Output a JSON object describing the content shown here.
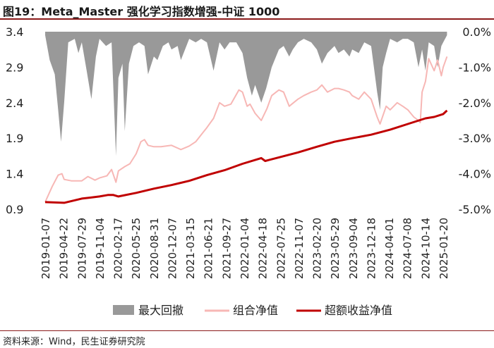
{
  "header": {
    "title": "图19：Meta_Master 强化学习指数增强-中证 1000"
  },
  "footer": {
    "source": "资料来源：Wind，民生证券研究院"
  },
  "chart_data": {
    "type": "line",
    "x_dates": [
      "2019-01-07",
      "2019-04-22",
      "2019-07-29",
      "2019-11-04",
      "2020-02-17",
      "2020-05-25",
      "2020-08-31",
      "2020-12-07",
      "2021-03-15",
      "2021-06-21",
      "2021-09-27",
      "2022-01-04",
      "2022-04-18",
      "2022-07-25",
      "2022-11-07",
      "2023-02-20",
      "2023-05-29",
      "2023-09-04",
      "2023-12-18",
      "2024-04-01",
      "2024-07-08",
      "2024-10-14",
      "2025-01-20"
    ],
    "y_left": {
      "ticks": [
        "0.9",
        "1.4",
        "1.9",
        "2.4",
        "2.9",
        "3.4"
      ],
      "lim": [
        0.9,
        3.4
      ]
    },
    "y_right": {
      "ticks": [
        "0.0%",
        "-1.0%",
        "-2.0%",
        "-3.0%",
        "-4.0%",
        "-5.0%"
      ],
      "lim": [
        -5.0,
        0.0
      ]
    },
    "colors": {
      "drawdown": "#999999",
      "nav": "#f7b7b5",
      "excess": "#c00000"
    },
    "series": [
      {
        "name": "最大回撤",
        "kind": "area",
        "axis": "right",
        "points": [
          [
            "2019-01-07",
            -0.1
          ],
          [
            "2019-02-01",
            -0.8
          ],
          [
            "2019-03-01",
            -1.2
          ],
          [
            "2019-03-20",
            -2.2
          ],
          [
            "2019-04-05",
            -3.1
          ],
          [
            "2019-04-22",
            -2.0
          ],
          [
            "2019-05-15",
            -0.3
          ],
          [
            "2019-06-20",
            -0.2
          ],
          [
            "2019-07-10",
            -0.6
          ],
          [
            "2019-07-29",
            -0.3
          ],
          [
            "2019-08-25",
            -1.1
          ],
          [
            "2019-09-20",
            -1.9
          ],
          [
            "2019-10-15",
            -0.7
          ],
          [
            "2019-11-04",
            -0.2
          ],
          [
            "2019-12-10",
            -0.4
          ],
          [
            "2020-01-10",
            -0.3
          ],
          [
            "2020-02-03",
            -3.5
          ],
          [
            "2020-02-17",
            -1.3
          ],
          [
            "2020-03-10",
            -0.9
          ],
          [
            "2020-03-23",
            -2.8
          ],
          [
            "2020-04-15",
            -0.9
          ],
          [
            "2020-05-10",
            -0.4
          ],
          [
            "2020-06-10",
            -0.3
          ],
          [
            "2020-07-10",
            -0.4
          ],
          [
            "2020-07-30",
            -1.2
          ],
          [
            "2020-08-31",
            -0.7
          ],
          [
            "2020-09-20",
            -0.8
          ],
          [
            "2020-10-20",
            -0.4
          ],
          [
            "2020-11-20",
            -0.3
          ],
          [
            "2020-12-07",
            -0.5
          ],
          [
            "2021-01-10",
            -0.4
          ],
          [
            "2021-01-28",
            -0.8
          ],
          [
            "2021-02-20",
            -0.5
          ],
          [
            "2021-03-15",
            -0.2
          ],
          [
            "2021-04-20",
            -0.3
          ],
          [
            "2021-05-20",
            -0.2
          ],
          [
            "2021-06-21",
            -0.3
          ],
          [
            "2021-07-28",
            -1.1
          ],
          [
            "2021-08-30",
            -0.3
          ],
          [
            "2021-09-27",
            -0.5
          ],
          [
            "2021-10-25",
            -0.3
          ],
          [
            "2021-12-01",
            -0.3
          ],
          [
            "2022-01-04",
            -0.6
          ],
          [
            "2022-01-30",
            -1.3
          ],
          [
            "2022-02-25",
            -1.8
          ],
          [
            "2022-03-15",
            -1.5
          ],
          [
            "2022-04-18",
            -2.0
          ],
          [
            "2022-05-15",
            -1.6
          ],
          [
            "2022-06-15",
            -1.0
          ],
          [
            "2022-07-25",
            -0.5
          ],
          [
            "2022-08-20",
            -0.4
          ],
          [
            "2022-09-20",
            -0.7
          ],
          [
            "2022-10-10",
            -0.5
          ],
          [
            "2022-11-07",
            -0.3
          ],
          [
            "2022-12-10",
            -0.2
          ],
          [
            "2023-01-20",
            -0.3
          ],
          [
            "2023-02-20",
            -0.5
          ],
          [
            "2023-03-20",
            -0.9
          ],
          [
            "2023-04-20",
            -0.6
          ],
          [
            "2023-05-29",
            -0.4
          ],
          [
            "2023-06-20",
            -0.6
          ],
          [
            "2023-07-20",
            -0.5
          ],
          [
            "2023-08-20",
            -0.7
          ],
          [
            "2023-09-04",
            -0.5
          ],
          [
            "2023-10-10",
            -0.6
          ],
          [
            "2023-11-10",
            -0.3
          ],
          [
            "2023-12-18",
            -0.4
          ],
          [
            "2024-01-20",
            -1.7
          ],
          [
            "2024-02-05",
            -2.2
          ],
          [
            "2024-02-20",
            -1.0
          ],
          [
            "2024-03-10",
            -0.6
          ],
          [
            "2024-04-01",
            -0.2
          ],
          [
            "2024-05-10",
            -0.3
          ],
          [
            "2024-06-10",
            -0.2
          ],
          [
            "2024-07-08",
            -0.2
          ],
          [
            "2024-08-10",
            -0.3
          ],
          [
            "2024-09-05",
            -1.0
          ],
          [
            "2024-09-25",
            -0.5
          ],
          [
            "2024-10-14",
            -1.1
          ],
          [
            "2024-11-01",
            -0.3
          ],
          [
            "2024-12-01",
            -0.4
          ],
          [
            "2024-12-20",
            -1.0
          ],
          [
            "2025-01-10",
            -0.4
          ],
          [
            "2025-01-20",
            -0.3
          ],
          [
            "2025-02-10",
            -0.1
          ]
        ]
      },
      {
        "name": "组合净值",
        "kind": "line",
        "axis": "left",
        "points": [
          [
            "2019-01-07",
            1.0
          ],
          [
            "2019-02-15",
            1.22
          ],
          [
            "2019-03-20",
            1.38
          ],
          [
            "2019-04-10",
            1.4
          ],
          [
            "2019-04-22",
            1.32
          ],
          [
            "2019-06-01",
            1.3
          ],
          [
            "2019-07-29",
            1.3
          ],
          [
            "2019-09-01",
            1.36
          ],
          [
            "2019-10-10",
            1.31
          ],
          [
            "2019-11-04",
            1.34
          ],
          [
            "2019-12-15",
            1.37
          ],
          [
            "2020-01-10",
            1.46
          ],
          [
            "2020-02-03",
            1.28
          ],
          [
            "2020-02-17",
            1.44
          ],
          [
            "2020-03-23",
            1.5
          ],
          [
            "2020-04-20",
            1.54
          ],
          [
            "2020-05-25",
            1.68
          ],
          [
            "2020-06-20",
            1.85
          ],
          [
            "2020-07-10",
            1.88
          ],
          [
            "2020-07-30",
            1.8
          ],
          [
            "2020-08-31",
            1.78
          ],
          [
            "2020-10-10",
            1.78
          ],
          [
            "2020-12-07",
            1.8
          ],
          [
            "2021-01-28",
            1.74
          ],
          [
            "2021-03-15",
            1.79
          ],
          [
            "2021-04-20",
            1.85
          ],
          [
            "2021-05-30",
            1.98
          ],
          [
            "2021-06-21",
            2.05
          ],
          [
            "2021-07-28",
            2.18
          ],
          [
            "2021-08-30",
            2.4
          ],
          [
            "2021-09-27",
            2.35
          ],
          [
            "2021-11-01",
            2.38
          ],
          [
            "2021-12-15",
            2.58
          ],
          [
            "2022-01-04",
            2.55
          ],
          [
            "2022-01-30",
            2.35
          ],
          [
            "2022-02-15",
            2.38
          ],
          [
            "2022-03-15",
            2.25
          ],
          [
            "2022-04-18",
            2.15
          ],
          [
            "2022-05-20",
            2.32
          ],
          [
            "2022-06-15",
            2.5
          ],
          [
            "2022-07-25",
            2.58
          ],
          [
            "2022-08-20",
            2.55
          ],
          [
            "2022-09-20",
            2.35
          ],
          [
            "2022-11-07",
            2.45
          ],
          [
            "2022-12-10",
            2.5
          ],
          [
            "2023-01-20",
            2.55
          ],
          [
            "2023-02-20",
            2.58
          ],
          [
            "2023-03-20",
            2.65
          ],
          [
            "2023-04-20",
            2.55
          ],
          [
            "2023-05-29",
            2.6
          ],
          [
            "2023-06-20",
            2.6
          ],
          [
            "2023-07-20",
            2.58
          ],
          [
            "2023-08-20",
            2.55
          ],
          [
            "2023-09-04",
            2.5
          ],
          [
            "2023-10-10",
            2.45
          ],
          [
            "2023-11-10",
            2.55
          ],
          [
            "2023-12-18",
            2.45
          ],
          [
            "2024-01-20",
            2.2
          ],
          [
            "2024-02-05",
            2.1
          ],
          [
            "2024-03-10",
            2.35
          ],
          [
            "2024-04-01",
            2.3
          ],
          [
            "2024-05-10",
            2.4
          ],
          [
            "2024-06-10",
            2.35
          ],
          [
            "2024-07-08",
            2.3
          ],
          [
            "2024-08-10",
            2.2
          ],
          [
            "2024-09-05",
            2.15
          ],
          [
            "2024-09-15",
            2.12
          ],
          [
            "2024-09-25",
            2.55
          ],
          [
            "2024-10-14",
            2.7
          ],
          [
            "2024-11-01",
            3.02
          ],
          [
            "2024-12-01",
            2.85
          ],
          [
            "2024-12-20",
            3.0
          ],
          [
            "2025-01-10",
            2.78
          ],
          [
            "2025-01-20",
            2.9
          ],
          [
            "2025-02-10",
            3.05
          ]
        ]
      },
      {
        "name": "超额收益净值",
        "kind": "line",
        "axis": "left",
        "points": [
          [
            "2019-01-07",
            1.0
          ],
          [
            "2019-04-22",
            0.99
          ],
          [
            "2019-07-29",
            1.05
          ],
          [
            "2019-11-04",
            1.08
          ],
          [
            "2019-12-20",
            1.1
          ],
          [
            "2020-01-20",
            1.1
          ],
          [
            "2020-02-17",
            1.08
          ],
          [
            "2020-05-25",
            1.13
          ],
          [
            "2020-08-31",
            1.19
          ],
          [
            "2020-12-07",
            1.24
          ],
          [
            "2021-03-15",
            1.3
          ],
          [
            "2021-06-21",
            1.38
          ],
          [
            "2021-09-27",
            1.45
          ],
          [
            "2022-01-04",
            1.54
          ],
          [
            "2022-04-18",
            1.62
          ],
          [
            "2022-05-10",
            1.58
          ],
          [
            "2022-07-25",
            1.63
          ],
          [
            "2022-11-07",
            1.7
          ],
          [
            "2023-02-20",
            1.78
          ],
          [
            "2023-05-29",
            1.85
          ],
          [
            "2023-09-04",
            1.9
          ],
          [
            "2023-12-18",
            1.95
          ],
          [
            "2024-04-01",
            2.02
          ],
          [
            "2024-07-08",
            2.1
          ],
          [
            "2024-10-14",
            2.18
          ],
          [
            "2024-12-01",
            2.2
          ],
          [
            "2025-01-20",
            2.24
          ],
          [
            "2025-02-10",
            2.29
          ]
        ]
      }
    ],
    "legend_position": "bottom",
    "grid": false
  }
}
